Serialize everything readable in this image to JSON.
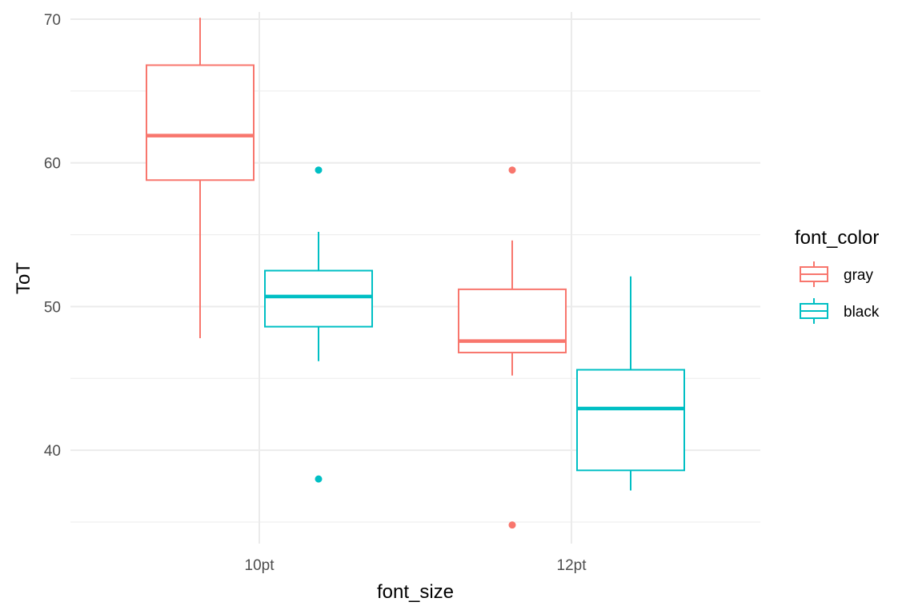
{
  "chart_data": {
    "type": "boxplot",
    "xlabel": "font_size",
    "ylabel": "ToT",
    "categories": [
      "10pt",
      "12pt"
    ],
    "ylim": [
      33.5,
      70.5
    ],
    "yticks": [
      40,
      50,
      60,
      70
    ],
    "y_minor_gridlines": [
      35,
      45,
      55,
      65
    ],
    "grid": true,
    "legend": {
      "title": "font_color",
      "position": "right",
      "entries": [
        {
          "label": "gray",
          "color": "#F8766D"
        },
        {
          "label": "black",
          "color": "#00BFC4"
        }
      ]
    },
    "series": [
      {
        "name": "gray",
        "color": "#F8766D",
        "boxes": [
          {
            "category": "10pt",
            "whisker_low": 47.8,
            "q1": 58.8,
            "median": 61.9,
            "q3": 66.8,
            "whisker_high": 70.1,
            "outliers": []
          },
          {
            "category": "12pt",
            "whisker_low": 45.2,
            "q1": 46.8,
            "median": 47.6,
            "q3": 51.2,
            "whisker_high": 54.6,
            "outliers": [
              59.5,
              34.8
            ]
          }
        ]
      },
      {
        "name": "black",
        "color": "#00BFC4",
        "boxes": [
          {
            "category": "10pt",
            "whisker_low": 46.2,
            "q1": 48.6,
            "median": 50.7,
            "q3": 52.5,
            "whisker_high": 55.2,
            "outliers": [
              59.5,
              38.0
            ]
          },
          {
            "category": "12pt",
            "whisker_low": 37.2,
            "q1": 38.6,
            "median": 42.9,
            "q3": 45.6,
            "whisker_high": 52.1,
            "outliers": []
          }
        ]
      }
    ]
  }
}
